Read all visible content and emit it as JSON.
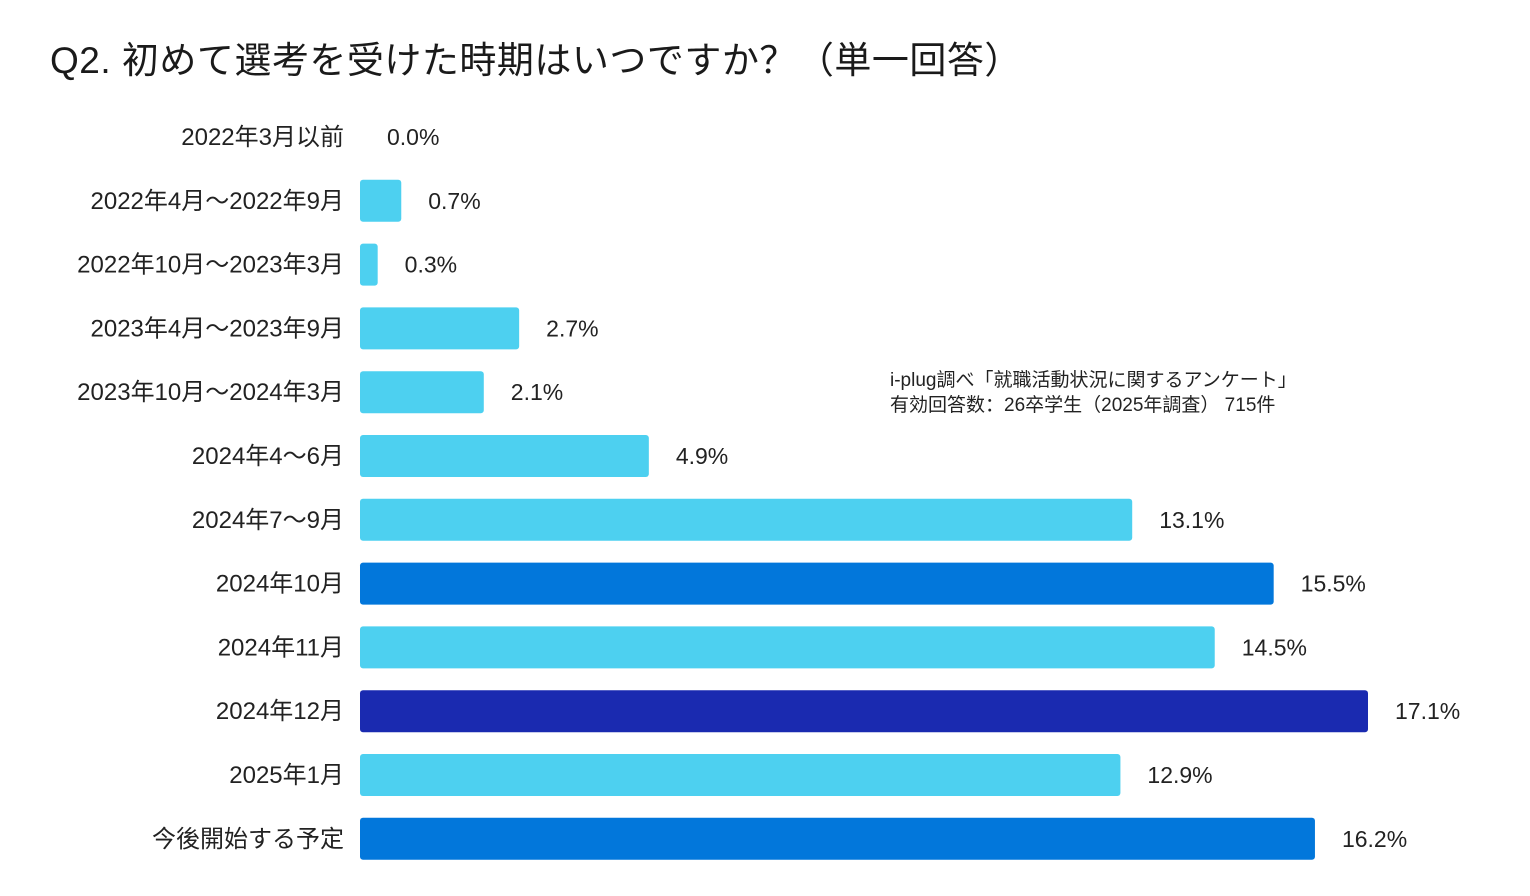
{
  "title": "Q2. 初めて選考を受けた時期はいつですか？（単一回答）",
  "source": {
    "line1": "i-plug調べ「就職活動状況に関するアンケート」",
    "line2": "有効回答数：26卒学生（2025年調査） 715件"
  },
  "colors": {
    "light": "#4DD0F0",
    "medium": "#0277DB",
    "dark": "#1A2AB0"
  },
  "chart_data": {
    "type": "bar",
    "orientation": "horizontal",
    "title": "Q2. 初めて選考を受けた時期はいつですか？（単一回答）",
    "value_suffix": "%",
    "categories": [
      "2022年3月以前",
      "2022年4月〜2022年9月",
      "2022年10月〜2023年3月",
      "2023年4月〜2023年9月",
      "2023年10月〜2024年3月",
      "2024年4〜6月",
      "2024年7〜9月",
      "2024年10月",
      "2024年11月",
      "2024年12月",
      "2025年1月",
      "今後開始する予定"
    ],
    "values": [
      0.0,
      0.7,
      0.3,
      2.7,
      2.1,
      4.9,
      13.1,
      15.5,
      14.5,
      17.1,
      12.9,
      16.2
    ],
    "labels": [
      "0.0%",
      "0.7%",
      "0.3%",
      "2.7%",
      "2.1%",
      "4.9%",
      "13.1%",
      "15.5%",
      "14.5%",
      "17.1%",
      "12.9%",
      "16.2%"
    ],
    "bar_colors": [
      "light",
      "light",
      "light",
      "light",
      "light",
      "light",
      "light",
      "medium",
      "light",
      "dark",
      "light",
      "medium"
    ],
    "xlim": [
      0,
      17.1
    ],
    "grid": false,
    "legend": "none"
  }
}
